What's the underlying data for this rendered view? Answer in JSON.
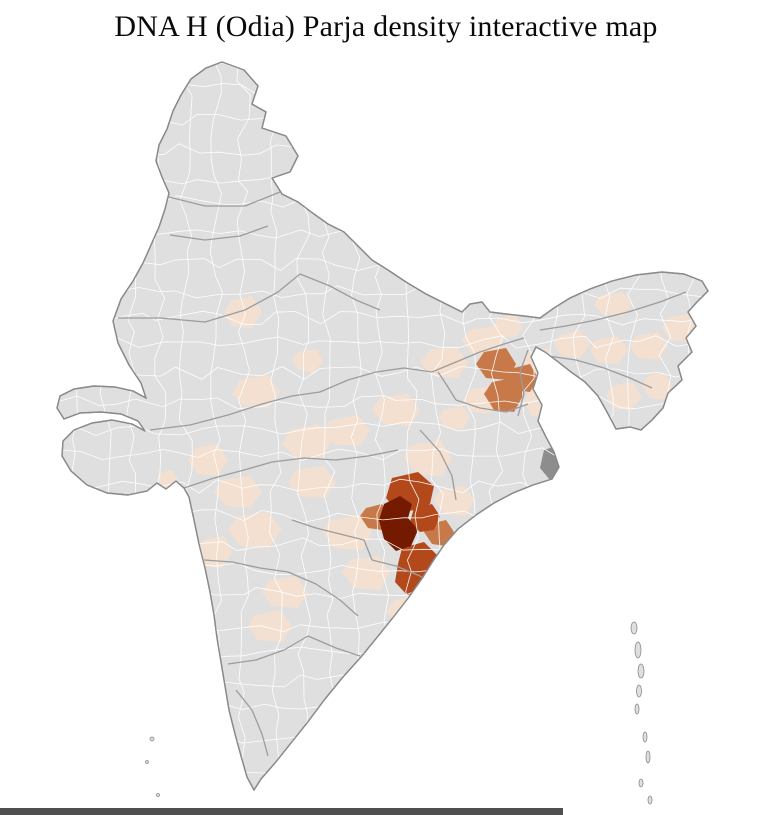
{
  "header": {
    "title": "DNA H (Odia) Parja density interactive map"
  },
  "map": {
    "colors": {
      "base": "#dfdfdf",
      "outline": "#8a8a8a",
      "state_border": "#9c9c9c",
      "district_border": "#ffffff",
      "density_low": "#f4e0d0",
      "density_mid": "#c8794a",
      "density_high": "#b3491b",
      "density_max": "#731a01",
      "dense_cluster_gray": "#8d8d8d"
    }
  },
  "footer": {
    "bar_color": "#4f4f4f"
  }
}
